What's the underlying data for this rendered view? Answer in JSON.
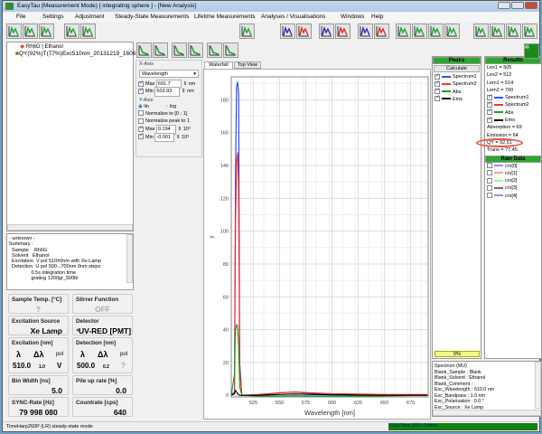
{
  "window": {
    "title": "EasyTau  (Measurement Mode)    [ integrating sphere ] - [New Analysis]"
  },
  "menu": [
    "File",
    "Settings",
    "Adjustment",
    "Steady-State Measurements",
    "Lifetime Measurements",
    "Analyses / Visualisations",
    "Windows",
    "Help"
  ],
  "tree": {
    "root": "Rh6G | Ethanol",
    "child": "QY(92%)T(77%)Exc510nm_20131219_1606"
  },
  "info": {
    "lines": [
      "- unknown -",
      "Summary :",
      "  Sample    Rh6G",
      "  Solvent   Ethanol",
      "  Excitation  V pol 510±0nm with Xe-Lamp",
      "  Detection  U pol 500...700nm 0nm steps",
      "                0.5s integration time",
      "                grating 1200gr_500bl"
    ]
  },
  "params": {
    "sample_temp": {
      "label": "Sample Temp. [°C]",
      "value": "?"
    },
    "stirrer": {
      "label": "Stirrer Function",
      "value": "OFF"
    },
    "exc_source": {
      "label": "Excitation Source",
      "value": "Xe Lamp"
    },
    "detector": {
      "label": "Detector",
      "value": "UV-RED [PMT]"
    },
    "excitation": {
      "label": "Excitation  [nm]",
      "lambda": "λ",
      "dlambda": "Δλ",
      "pol": "pol",
      "lambda_val": "510.0",
      "dlambda_val": "1.0",
      "pol_val": "V"
    },
    "detection": {
      "label": "Detection  [nm]",
      "lambda": "λ",
      "dlambda": "Δλ",
      "pol": "pol",
      "lambda_val": "500.0",
      "dlambda_val": "0.2",
      "pol_val": "?"
    },
    "bin_width": {
      "label": "Bin Width  [ns]",
      "value": "5.0"
    },
    "pileup": {
      "label": "Pile up rate  [%]",
      "value": "0.0"
    },
    "sync": {
      "label": "SYNC-Rate  [Hz]",
      "value": "79 998 080"
    },
    "countrate": {
      "label": "Countrate  [cps]",
      "value": "640"
    }
  },
  "axes_panel": {
    "xaxis_label": "X-Axis",
    "xaxis_select": "Wavelength",
    "max_label": "Max",
    "max_val": "691.7",
    "min_label": "Min",
    "min_val": "503.93",
    "unit": "nm",
    "yaxis_label": "Y-Axis",
    "lin": "lin",
    "log": "log",
    "norm01": "Normalize to [0 ; 1]",
    "normpeak": "Normalize peak to 1",
    "ymax_val": "0.194",
    "ymin_val": "-0.001",
    "yunit": "10³"
  },
  "tabs": [
    "Waterfall",
    "Top View"
  ],
  "peaks": {
    "header": "Peaks",
    "calculate": "Calculate",
    "items": [
      {
        "name": "Spectrum1",
        "color": "#3050ff"
      },
      {
        "name": "Spectrum2",
        "color": "#ff3030"
      },
      {
        "name": "Abs",
        "color": "#20a020"
      },
      {
        "name": "Ems",
        "color": "#000000"
      }
    ],
    "progress": "0%",
    "progress_value": 0
  },
  "results": {
    "header": "Results",
    "lines": [
      "Lex1 = 505",
      "Lex2 = 512",
      "Lem1 = 514",
      "Lem2 = 700"
    ],
    "items": [
      "Spectrum1",
      "Spectrum2",
      "Abs",
      "Ems"
    ],
    "after": [
      "Absorption = 69",
      "Emission = 64",
      "QY = 92.51",
      "Trans = 77.45"
    ],
    "highlight": "QY = 92.51"
  },
  "rawdata": {
    "header": "Raw Data",
    "items": [
      {
        "name": "crv[0]",
        "color": "#9090ff"
      },
      {
        "name": "crv[1]",
        "color": "#ffa0a0"
      },
      {
        "name": "crv[2]",
        "color": "#90ff90"
      },
      {
        "name": "crv[3]",
        "color": "#707070"
      },
      {
        "name": "crv[4]",
        "color": "#9090ff"
      }
    ]
  },
  "details": [
    "Spectrum (MU)",
    "Blank_Sample : Blank",
    "Blank_Solvent : Ethanol",
    "Blank_Comment :",
    "Exc_Wavelength : 510.0 nm",
    "Exc_Bandpass : 1.0 nm",
    "Exc_Polarisation : 0.0 °",
    "Exc_Source : Xe Lamp"
  ],
  "status": {
    "left": "TimeHarp260P (LR) steady-state mode",
    "right": "FluoTime 300: Online"
  },
  "chart_data": {
    "type": "line",
    "xlabel": "Wavelength [nm]",
    "ylabel": "y",
    "xlim": [
      503.93,
      691.7
    ],
    "ylim": [
      -1,
      194
    ],
    "xticks": [
      525,
      550,
      575,
      600,
      625,
      650,
      675
    ],
    "yticks": [
      0,
      20,
      40,
      60,
      80,
      100,
      120,
      140,
      160,
      180
    ],
    "grid": true,
    "series": [
      {
        "name": "Spectrum1",
        "color": "#2040ff",
        "x": [
          504,
          507,
          508,
          509,
          510,
          511,
          512,
          514,
          530,
          550,
          565,
          580,
          600,
          650,
          691
        ],
        "y": [
          0,
          2,
          136,
          188,
          191,
          184,
          20,
          0,
          0,
          1.5,
          2,
          1,
          0.5,
          0,
          0
        ]
      },
      {
        "name": "Spectrum2",
        "color": "#ff2020",
        "x": [
          504,
          507,
          508,
          509,
          510,
          511,
          512,
          514,
          530,
          550,
          565,
          580,
          600,
          650,
          691
        ],
        "y": [
          0,
          1,
          106,
          142,
          148,
          125,
          15,
          0,
          0.5,
          1.5,
          2,
          1.5,
          1,
          0.5,
          0.5
        ]
      },
      {
        "name": "Abs",
        "color": "#10a010",
        "x": [
          504,
          507,
          508,
          509,
          510,
          511,
          512,
          514,
          530,
          550,
          565,
          580,
          600,
          625,
          641,
          691
        ],
        "y": [
          0,
          13,
          40,
          43,
          42,
          30,
          5,
          0,
          -0.5,
          -0.5,
          -0.3,
          -0.5,
          -0.5,
          -0.5,
          -0.5,
          0
        ]
      },
      {
        "name": "Ems",
        "color": "#000000",
        "x": [
          504,
          507,
          508,
          509,
          510,
          511,
          512,
          514,
          530,
          550,
          565,
          580,
          600,
          650,
          691
        ],
        "y": [
          0,
          1,
          3,
          2,
          1,
          0.5,
          0,
          0,
          0,
          0.5,
          0.8,
          0.5,
          0.3,
          0,
          0
        ]
      }
    ]
  }
}
